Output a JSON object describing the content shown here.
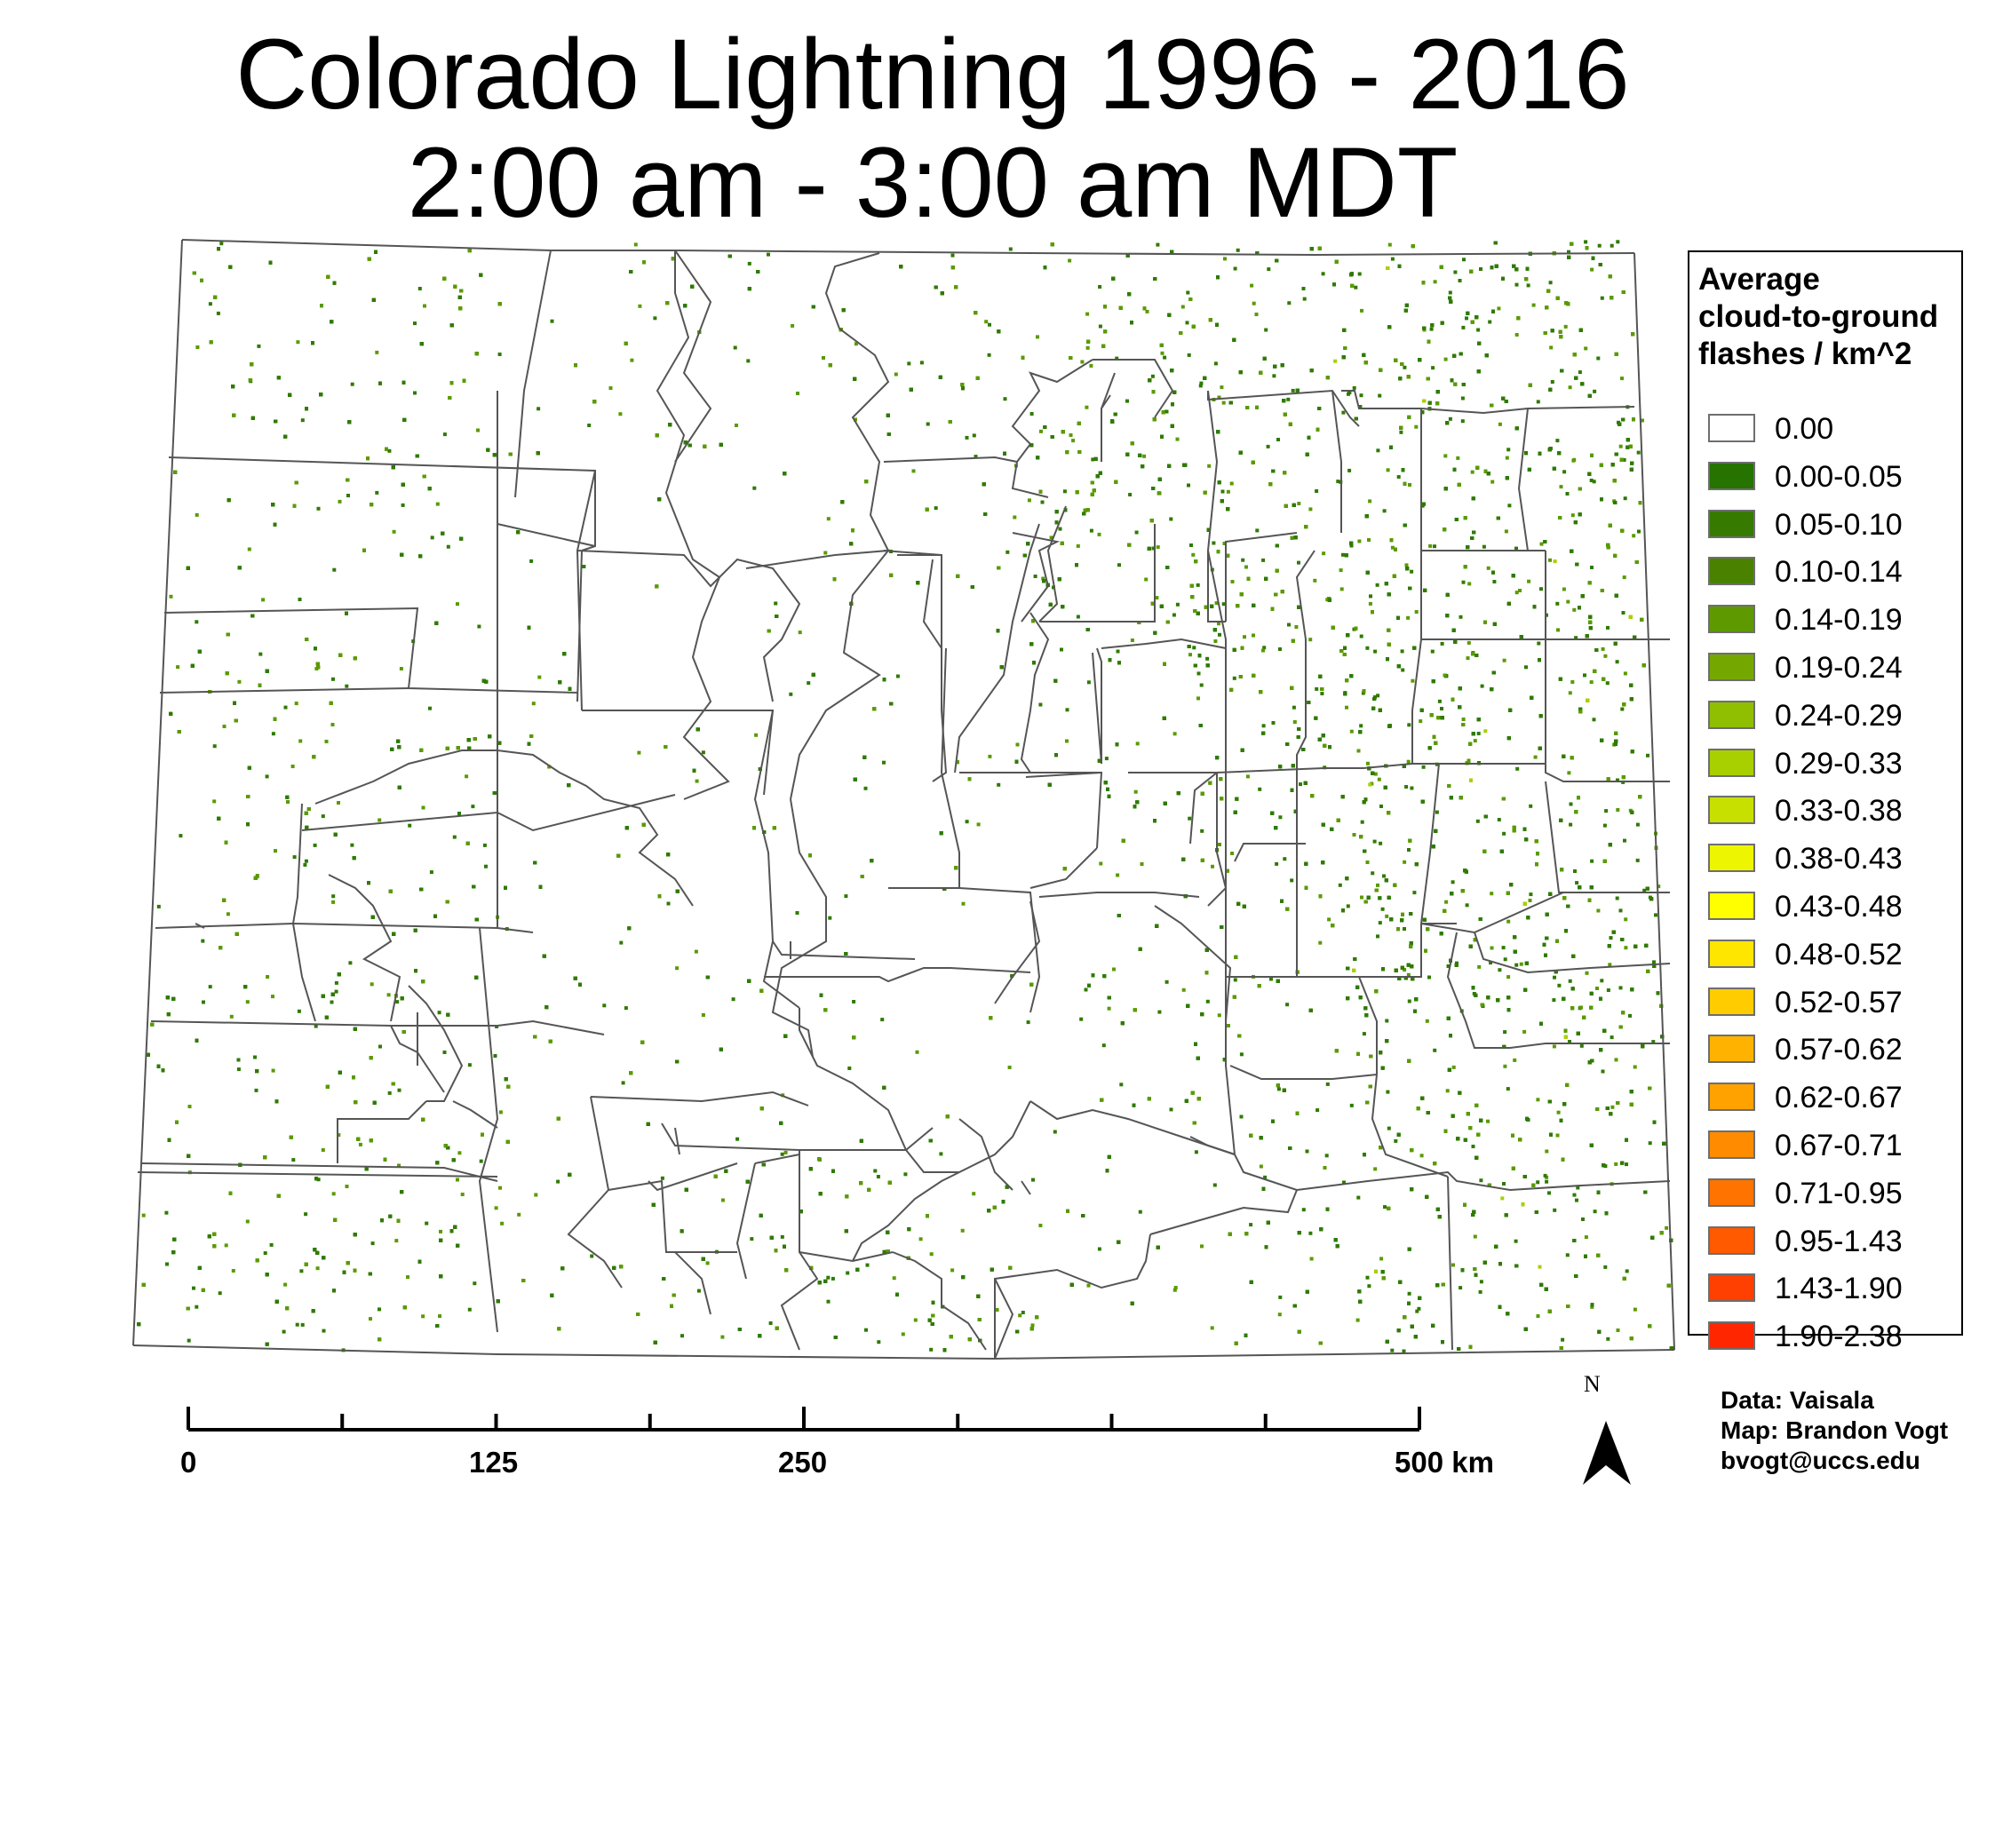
{
  "title": {
    "line1": "Colorado Lightning 1996 - 2016",
    "line2": "2:00 am - 3:00 am MDT"
  },
  "legend": {
    "title_lines": [
      "Average",
      "cloud-to-ground",
      "flashes / km^2"
    ],
    "classes": [
      {
        "label": "0.00",
        "color": "#ffffff"
      },
      {
        "label": "0.00-0.05",
        "color": "#267300"
      },
      {
        "label": "0.05-0.10",
        "color": "#377a00"
      },
      {
        "label": "0.10-0.14",
        "color": "#4a8200"
      },
      {
        "label": "0.14-0.19",
        "color": "#5e9900"
      },
      {
        "label": "0.19-0.24",
        "color": "#74a800"
      },
      {
        "label": "0.24-0.29",
        "color": "#8fbf00"
      },
      {
        "label": "0.29-0.33",
        "color": "#a8cf00"
      },
      {
        "label": "0.33-0.38",
        "color": "#c8e000"
      },
      {
        "label": "0.38-0.43",
        "color": "#eef500"
      },
      {
        "label": "0.43-0.48",
        "color": "#ffff00"
      },
      {
        "label": "0.48-0.52",
        "color": "#ffe600"
      },
      {
        "label": "0.52-0.57",
        "color": "#ffcc00"
      },
      {
        "label": "0.57-0.62",
        "color": "#ffb300"
      },
      {
        "label": "0.62-0.67",
        "color": "#ffa200"
      },
      {
        "label": "0.67-0.71",
        "color": "#ff8c00"
      },
      {
        "label": "0.71-0.95",
        "color": "#ff7300"
      },
      {
        "label": "0.95-1.43",
        "color": "#ff5a00"
      },
      {
        "label": "1.43-1.90",
        "color": "#ff4000"
      },
      {
        "label": "1.90-2.38",
        "color": "#ff2600"
      }
    ]
  },
  "scale_bar": {
    "labels": [
      "0",
      "125",
      "250",
      "500 km"
    ],
    "max_km": 500
  },
  "north_arrow": {
    "letter": "N",
    "icon": "north-arrow-icon"
  },
  "credits": {
    "data": "Data: Vaisala",
    "map": "Map: Brandon Vogt",
    "email": "bvogt@uccs.edu"
  },
  "map_style": {
    "boundary_color": "#555555",
    "dot_color": "#2f7a00",
    "dot_color_alt": "#5a9a00",
    "hotspot_color": "#a8cf00"
  }
}
